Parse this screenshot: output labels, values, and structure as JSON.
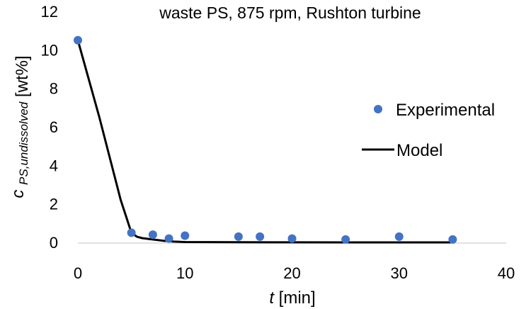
{
  "chart_data": {
    "type": "scatter",
    "title": "waste PS, 875 rpm, Rushton turbine",
    "xlabel": {
      "var": "t",
      "unit": "[min]"
    },
    "ylabel": {
      "var": "c",
      "sub": "PS,undissolved",
      "unit": "[wt%]"
    },
    "xlim": [
      0,
      40
    ],
    "ylim": [
      0,
      12
    ],
    "xticks": [
      "0",
      "10",
      "20",
      "30",
      "40"
    ],
    "yticks": [
      "0",
      "2",
      "4",
      "6",
      "8",
      "10",
      "12"
    ],
    "grid": false,
    "legend_position": "right",
    "colors": {
      "experimental": "#4472C4",
      "model": "#000000"
    },
    "series": [
      {
        "name": "Experimental",
        "kind": "markers",
        "x": [
          0,
          5,
          7,
          8.5,
          10,
          15,
          17,
          20,
          25,
          30,
          35
        ],
        "y": [
          10.5,
          0.5,
          0.4,
          0.2,
          0.35,
          0.3,
          0.3,
          0.2,
          0.15,
          0.3,
          0.15
        ]
      },
      {
        "name": "Model",
        "kind": "line",
        "x": [
          0,
          2,
          4,
          5,
          5.5,
          6,
          7,
          8,
          9,
          10,
          15,
          20,
          25,
          30,
          35
        ],
        "y": [
          10.5,
          6.5,
          2.2,
          0.5,
          0.3,
          0.22,
          0.15,
          0.08,
          0.04,
          0.02,
          0.01,
          0.005,
          0.0,
          0.0,
          0.0
        ]
      }
    ]
  }
}
